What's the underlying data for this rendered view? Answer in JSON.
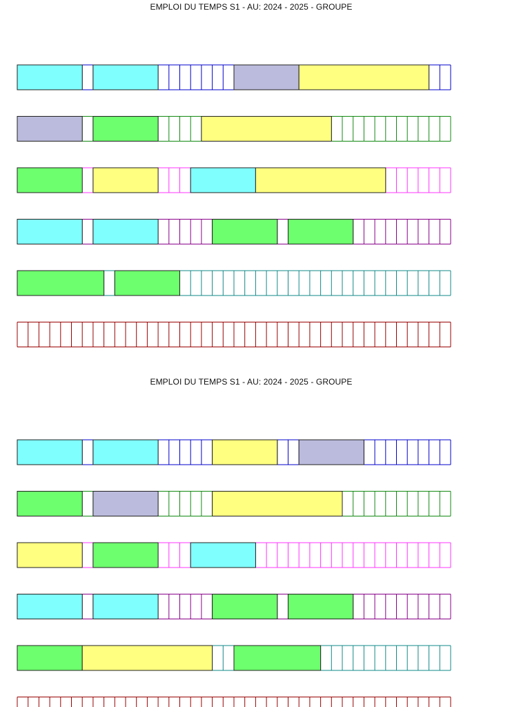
{
  "colors": {
    "cyan": "#80ffff",
    "green": "#6dff6d",
    "yellow": "#ffff80",
    "lavender": "#bbbbdd",
    "line_blue": "#0000cc",
    "line_green": "#118811",
    "line_magenta": "#ff33ff",
    "line_purple": "#880088",
    "line_teal": "#118888",
    "line_red": "#990000"
  },
  "schedules": [
    {
      "title": "EMPLOI DU TEMPS S1 - AU: 2024 - 2025 - GROUPE",
      "days": [
        {
          "line_color": "line_blue",
          "blocks": [
            {
              "start": 0,
              "span": 6,
              "color": "cyan"
            },
            {
              "start": 7,
              "span": 6,
              "color": "cyan"
            },
            {
              "start": 20,
              "span": 6,
              "color": "lavender"
            },
            {
              "start": 26,
              "span": 12,
              "color": "yellow"
            }
          ]
        },
        {
          "line_color": "line_green",
          "blocks": [
            {
              "start": 0,
              "span": 6,
              "color": "lavender"
            },
            {
              "start": 7,
              "span": 6,
              "color": "green"
            },
            {
              "start": 17,
              "span": 12,
              "color": "yellow"
            }
          ]
        },
        {
          "line_color": "line_magenta",
          "blocks": [
            {
              "start": 0,
              "span": 6,
              "color": "green"
            },
            {
              "start": 7,
              "span": 6,
              "color": "yellow"
            },
            {
              "start": 16,
              "span": 6,
              "color": "cyan"
            },
            {
              "start": 22,
              "span": 12,
              "color": "yellow"
            }
          ]
        },
        {
          "line_color": "line_purple",
          "blocks": [
            {
              "start": 0,
              "span": 6,
              "color": "cyan"
            },
            {
              "start": 7,
              "span": 6,
              "color": "cyan"
            },
            {
              "start": 18,
              "span": 6,
              "color": "green"
            },
            {
              "start": 25,
              "span": 6,
              "color": "green"
            }
          ]
        },
        {
          "line_color": "line_teal",
          "blocks": [
            {
              "start": 0,
              "span": 8,
              "color": "green"
            },
            {
              "start": 9,
              "span": 6,
              "color": "green"
            }
          ]
        },
        {
          "line_color": "line_red",
          "blocks": []
        }
      ]
    },
    {
      "title": "EMPLOI DU TEMPS S1 - AU: 2024 - 2025 - GROUPE",
      "days": [
        {
          "line_color": "line_blue",
          "blocks": [
            {
              "start": 0,
              "span": 6,
              "color": "cyan"
            },
            {
              "start": 7,
              "span": 6,
              "color": "cyan"
            },
            {
              "start": 18,
              "span": 6,
              "color": "yellow"
            },
            {
              "start": 26,
              "span": 6,
              "color": "lavender"
            }
          ]
        },
        {
          "line_color": "line_green",
          "blocks": [
            {
              "start": 0,
              "span": 6,
              "color": "green"
            },
            {
              "start": 7,
              "span": 6,
              "color": "lavender"
            },
            {
              "start": 18,
              "span": 12,
              "color": "yellow"
            }
          ]
        },
        {
          "line_color": "line_magenta",
          "blocks": [
            {
              "start": 0,
              "span": 6,
              "color": "yellow"
            },
            {
              "start": 7,
              "span": 6,
              "color": "green"
            },
            {
              "start": 16,
              "span": 6,
              "color": "cyan"
            }
          ]
        },
        {
          "line_color": "line_purple",
          "blocks": [
            {
              "start": 0,
              "span": 6,
              "color": "cyan"
            },
            {
              "start": 7,
              "span": 6,
              "color": "cyan"
            },
            {
              "start": 18,
              "span": 6,
              "color": "green"
            },
            {
              "start": 25,
              "span": 6,
              "color": "green"
            }
          ]
        },
        {
          "line_color": "line_teal",
          "blocks": [
            {
              "start": 0,
              "span": 6,
              "color": "green"
            },
            {
              "start": 6,
              "span": 12,
              "color": "yellow"
            },
            {
              "start": 20,
              "span": 8,
              "color": "green"
            }
          ]
        },
        {
          "line_color": "line_red",
          "blocks": []
        }
      ]
    }
  ]
}
